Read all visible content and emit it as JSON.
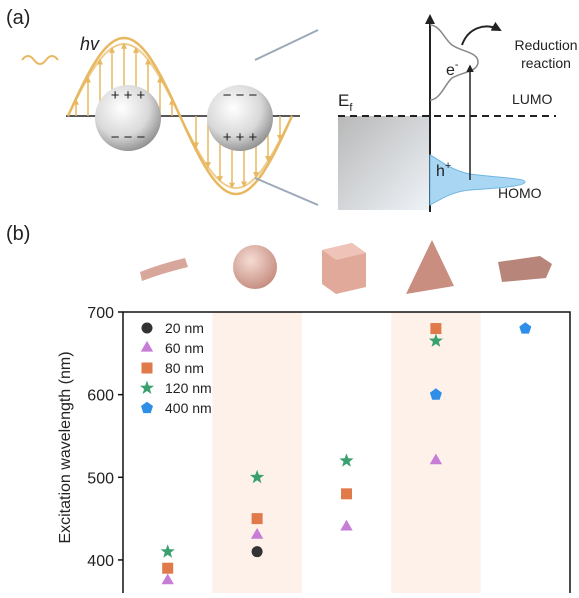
{
  "panel_a": {
    "label": "(a)",
    "photon": "hv",
    "positive": "+ + +",
    "negative": "− − −",
    "fermi_level": {
      "main": "E",
      "sub": "f"
    },
    "electron": {
      "main": "e",
      "sup": "-"
    },
    "hole": {
      "main": "h",
      "sup": "+"
    },
    "reaction": [
      "Reduction",
      "reaction"
    ],
    "lumo": "LUMO",
    "homo": "HOMO"
  },
  "panel_b_label": "(b)",
  "chart_data": {
    "type": "scatter",
    "ylabel": "Excitation wavelength (nm)",
    "categories": [
      null,
      null,
      null,
      null,
      null
    ],
    "ylim": [
      360,
      700
    ],
    "yticks": [
      400,
      500,
      600,
      700
    ],
    "shaded_bands": [
      false,
      true,
      false,
      true,
      false
    ],
    "band_color": "#fdf1ea",
    "legend": "upper left",
    "series": [
      {
        "name": "20 nm",
        "color": "#333333",
        "marker": "circle",
        "values": [
          null,
          410,
          null,
          null,
          null
        ]
      },
      {
        "name": "60 nm",
        "color": "#c77dd6",
        "marker": "triangle",
        "values": [
          375,
          430,
          440,
          520,
          null
        ]
      },
      {
        "name": "80 nm",
        "color": "#e07a4a",
        "marker": "square",
        "values": [
          390,
          450,
          480,
          680,
          null
        ]
      },
      {
        "name": "120 nm",
        "color": "#3aa06e",
        "marker": "star",
        "values": [
          410,
          500,
          520,
          665,
          null
        ]
      },
      {
        "name": "400 nm",
        "color": "#2f8fe8",
        "marker": "pentagon",
        "values": [
          null,
          null,
          null,
          600,
          680
        ]
      }
    ]
  }
}
